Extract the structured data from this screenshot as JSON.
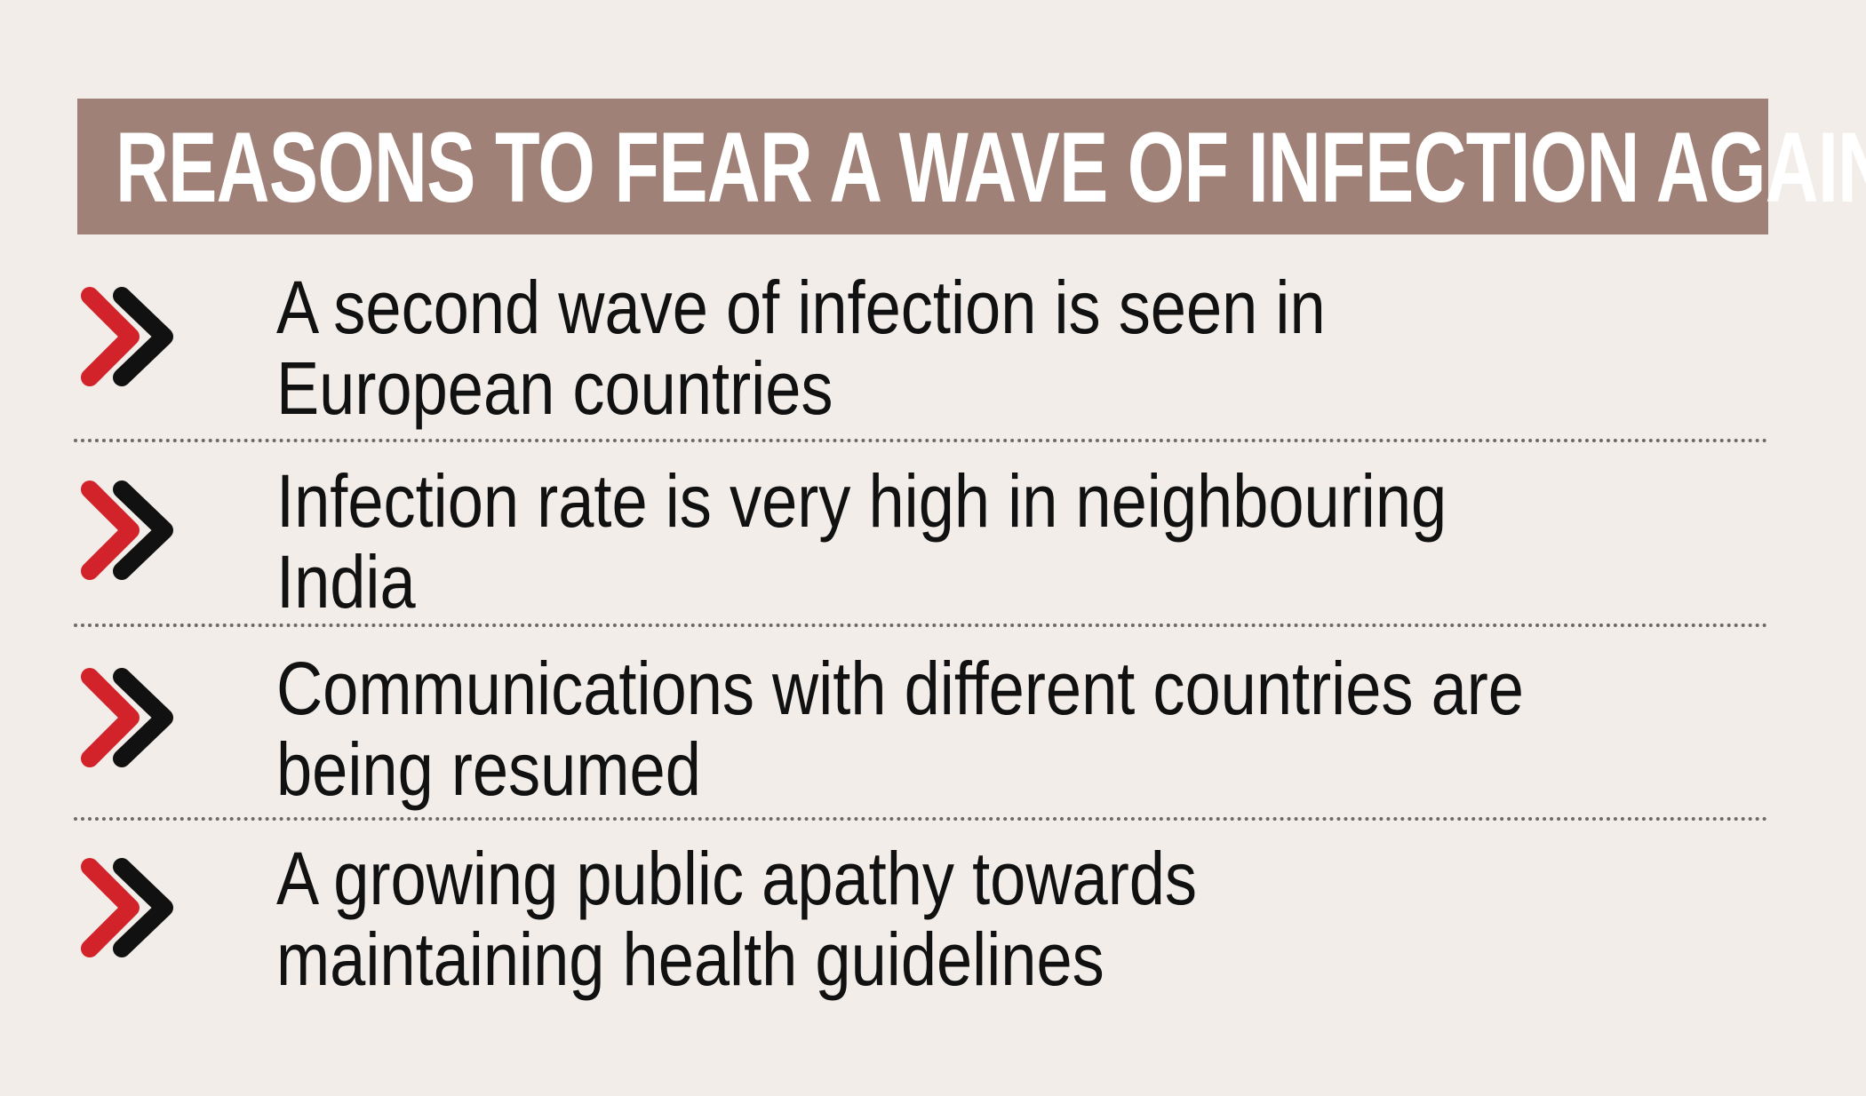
{
  "header": {
    "title": "REASONS TO FEAR A WAVE OF INFECTION AGAIN"
  },
  "colors": {
    "background": "#f2ede9",
    "header": "#a08178",
    "icon_front": "#d3232a",
    "icon_back": "#111111"
  },
  "items": [
    {
      "icon": "double-chevron-right-icon",
      "lines": [
        "A second wave of infection is seen in",
        "European countries"
      ]
    },
    {
      "icon": "double-chevron-right-icon",
      "lines": [
        "Infection rate is very high in neighbouring",
        "India"
      ]
    },
    {
      "icon": "double-chevron-right-icon",
      "lines": [
        "Communications with different countries are",
        "being resumed"
      ]
    },
    {
      "icon": "double-chevron-right-icon",
      "lines": [
        "A growing public apathy towards",
        "maintaining health guidelines"
      ]
    }
  ]
}
